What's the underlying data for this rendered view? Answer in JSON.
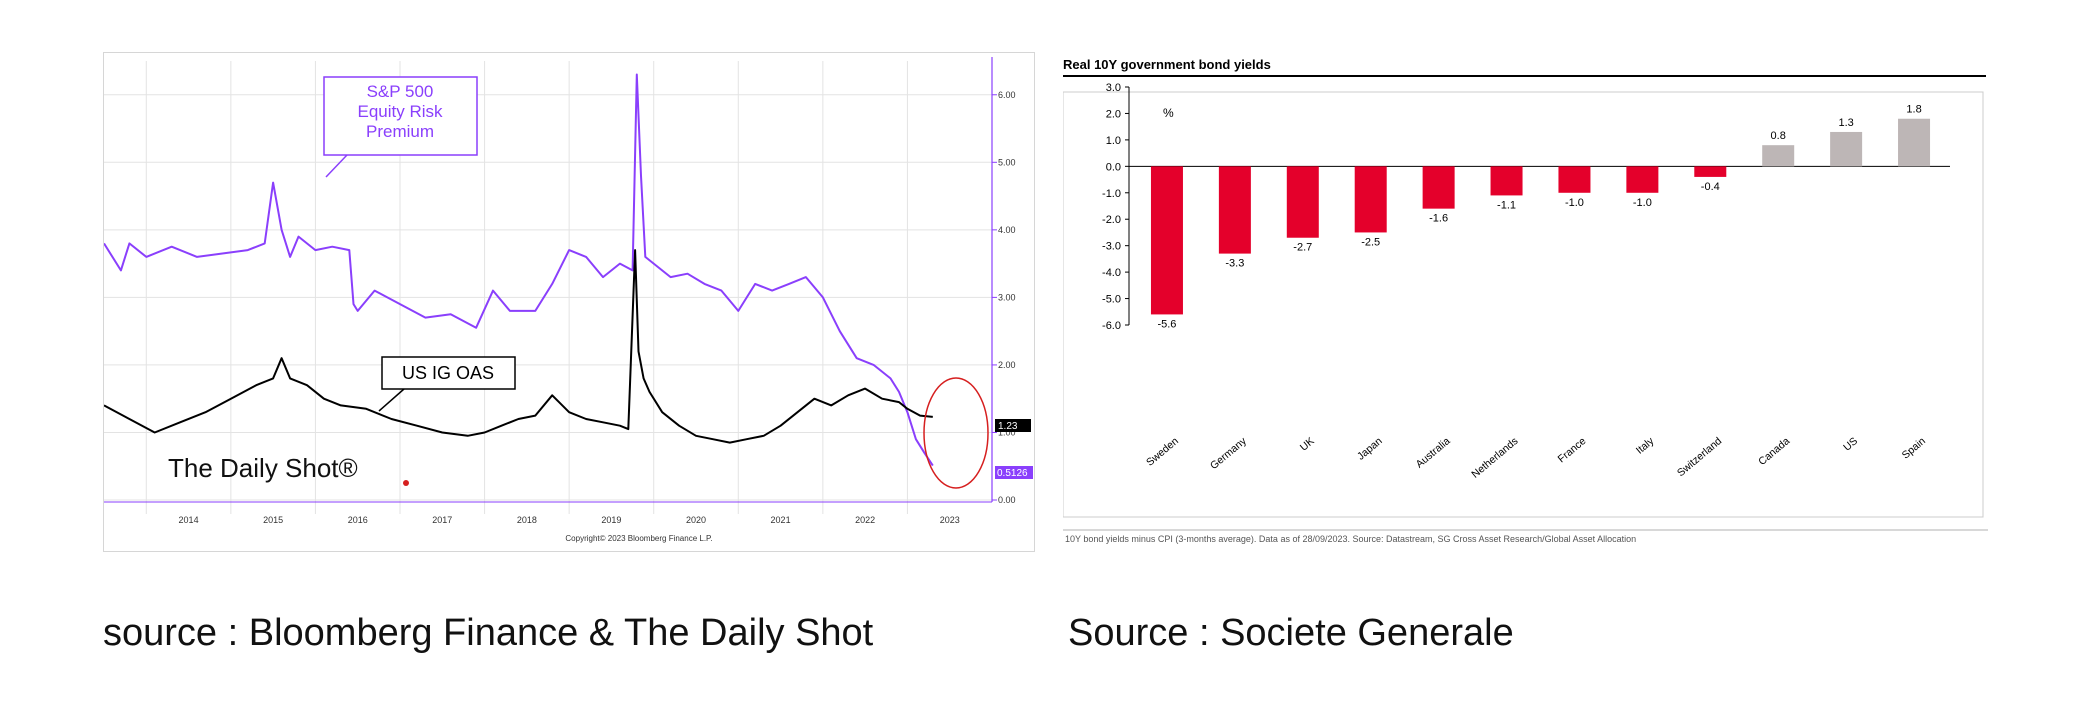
{
  "captions": {
    "left": "source : Bloomberg Finance & The Daily Shot",
    "right": "Source : Societe Generale"
  },
  "colors": {
    "erp": "#8a3ffc",
    "oas": "#000000",
    "highlight_circle": "#d61f1f",
    "bar_negative": "#e4002b",
    "bar_positive": "#bdb6b6"
  },
  "chart_data": [
    {
      "type": "line",
      "title": "",
      "annotations": {
        "erp_label": [
          "S&P 500",
          "Equity Risk",
          "Premium"
        ],
        "oas_label": "US IG OAS",
        "brand": "The Daily Shot®",
        "copyright": "Copyright© 2023 Bloomberg Finance L.P."
      },
      "x_ticks": [
        "2014",
        "2015",
        "2016",
        "2017",
        "2018",
        "2019",
        "2020",
        "2021",
        "2022",
        "2023"
      ],
      "y_ticks": [
        "0.00",
        "1.00",
        "2.00",
        "3.00",
        "4.00",
        "5.00",
        "6.00"
      ],
      "ylim": [
        0,
        6.5
      ],
      "xlim": [
        2013.5,
        2024.0
      ],
      "last_value_labels": {
        "oas": "1.23",
        "erp": "0.5126"
      },
      "series": [
        {
          "name": "S&P 500 Equity Risk Premium",
          "x": [
            2013.5,
            2013.7,
            2013.8,
            2014.0,
            2014.3,
            2014.6,
            2014.9,
            2015.2,
            2015.4,
            2015.5,
            2015.6,
            2015.7,
            2015.8,
            2016.0,
            2016.2,
            2016.4,
            2016.45,
            2016.5,
            2016.7,
            2017.0,
            2017.3,
            2017.6,
            2017.9,
            2018.1,
            2018.3,
            2018.6,
            2018.8,
            2019.0,
            2019.2,
            2019.4,
            2019.6,
            2019.75,
            2019.8,
            2019.85,
            2019.9,
            2020.0,
            2020.2,
            2020.4,
            2020.6,
            2020.8,
            2021.0,
            2021.2,
            2021.4,
            2021.6,
            2021.8,
            2022.0,
            2022.2,
            2022.4,
            2022.6,
            2022.8,
            2022.9,
            2023.0,
            2023.1,
            2023.2,
            2023.3
          ],
          "values": [
            3.8,
            3.4,
            3.8,
            3.6,
            3.75,
            3.6,
            3.65,
            3.7,
            3.8,
            4.7,
            4.0,
            3.6,
            3.9,
            3.7,
            3.75,
            3.7,
            2.9,
            2.8,
            3.1,
            2.9,
            2.7,
            2.75,
            2.55,
            3.1,
            2.8,
            2.8,
            3.2,
            3.7,
            3.6,
            3.3,
            3.5,
            3.4,
            6.3,
            4.8,
            3.6,
            3.5,
            3.3,
            3.35,
            3.2,
            3.1,
            2.8,
            3.2,
            3.1,
            3.2,
            3.3,
            3.0,
            2.5,
            2.1,
            2.0,
            1.8,
            1.6,
            1.3,
            0.9,
            0.7,
            0.51
          ]
        },
        {
          "name": "US IG OAS",
          "x": [
            2013.5,
            2013.8,
            2014.1,
            2014.4,
            2014.7,
            2015.0,
            2015.3,
            2015.5,
            2015.6,
            2015.7,
            2015.9,
            2016.1,
            2016.3,
            2016.6,
            2016.9,
            2017.2,
            2017.5,
            2017.8,
            2018.0,
            2018.2,
            2018.4,
            2018.6,
            2018.8,
            2019.0,
            2019.2,
            2019.4,
            2019.6,
            2019.7,
            2019.78,
            2019.82,
            2019.88,
            2019.95,
            2020.1,
            2020.3,
            2020.5,
            2020.7,
            2020.9,
            2021.1,
            2021.3,
            2021.5,
            2021.7,
            2021.9,
            2022.1,
            2022.3,
            2022.5,
            2022.7,
            2022.9,
            2023.0,
            2023.15,
            2023.3
          ],
          "values": [
            1.4,
            1.2,
            1.0,
            1.15,
            1.3,
            1.5,
            1.7,
            1.8,
            2.1,
            1.8,
            1.7,
            1.5,
            1.4,
            1.35,
            1.2,
            1.1,
            1.0,
            0.95,
            1.0,
            1.1,
            1.2,
            1.25,
            1.55,
            1.3,
            1.2,
            1.15,
            1.1,
            1.05,
            3.7,
            2.2,
            1.8,
            1.6,
            1.3,
            1.1,
            0.95,
            0.9,
            0.85,
            0.9,
            0.95,
            1.1,
            1.3,
            1.5,
            1.4,
            1.55,
            1.65,
            1.5,
            1.45,
            1.35,
            1.25,
            1.23
          ]
        }
      ]
    },
    {
      "type": "bar",
      "title": "Real 10Y government bond yields",
      "unit_label": "%",
      "categories": [
        "Sweden",
        "Germany",
        "UK",
        "Japan",
        "Australia",
        "Netherlands",
        "France",
        "Italy",
        "Switzerland",
        "Canada",
        "US",
        "Spain"
      ],
      "values": [
        -5.6,
        -3.3,
        -2.7,
        -2.5,
        -1.6,
        -1.1,
        -1.0,
        -1.0,
        -0.4,
        0.8,
        1.3,
        1.8
      ],
      "value_labels": [
        "-5.6",
        "-3.3",
        "-2.7",
        "-2.5",
        "-1.6",
        "-1.1",
        "-1.0",
        "-1.0",
        "-0.4",
        "0.8",
        "1.3",
        "1.8"
      ],
      "y_ticks": [
        "3.0",
        "2.0",
        "1.0",
        "0.0",
        "-1.0",
        "-2.0",
        "-3.0",
        "-4.0",
        "-5.0",
        "-6.0"
      ],
      "ylim": [
        -6,
        3
      ],
      "footnote": "10Y bond yields minus CPI (3-months average). Data as of 28/09/2023. Source: Datastream, SG Cross Asset Research/Global Asset Allocation"
    }
  ]
}
